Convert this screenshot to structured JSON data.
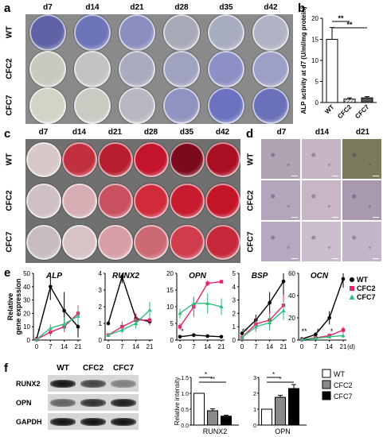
{
  "panels": {
    "a": "a",
    "b": "b",
    "c": "c",
    "d": "d",
    "e": "e",
    "f": "f"
  },
  "timepoints": [
    "d7",
    "d14",
    "d21",
    "d28",
    "d35",
    "d42"
  ],
  "micro_timepoints": [
    "d7",
    "d14",
    "d21"
  ],
  "rows": [
    "WT",
    "CFC2",
    "CFC7"
  ],
  "panel_a_colors": [
    [
      "#5f63a5",
      "#6e74b8",
      "#8b8fc0",
      "#a8aab8",
      "#a8acc0",
      "#b0b3c3"
    ],
    [
      "#c9c9bf",
      "#c2c4c3",
      "#a9abc0",
      "#a0a3c0",
      "#8c90c4",
      "#9c9fc8"
    ],
    [
      "#d3d3c6",
      "#cbcbc3",
      "#b7b8c2",
      "#8e93c0",
      "#6c72bf",
      "#6b71b9"
    ]
  ],
  "panel_c_colors": [
    [
      "#d9c8c8",
      "#c23040",
      "#b81e2e",
      "#c3142c",
      "#7d0a1c",
      "#aa0e22"
    ],
    [
      "#cfc0c3",
      "#d7aeb3",
      "#c9505e",
      "#d12a3a",
      "#c71c30",
      "#c41428"
    ],
    [
      "#c9bcc0",
      "#d7c3c6",
      "#d69ea5",
      "#cc6a74",
      "#cf3c4c",
      "#c4283a"
    ]
  ],
  "panel_d_colors": [
    [
      "#b1a2b4",
      "#c7b4c4",
      "#7a7a5c"
    ],
    [
      "#b3a6bb",
      "#c8b6c4",
      "#a899ae"
    ],
    [
      "#b8a8bf",
      "#cbbdcd",
      "#c4b6c8"
    ]
  ],
  "panel_b": {
    "chart_data": {
      "type": "bar",
      "ylabel": "ALP activity at d7 (U/ml/mg protein)",
      "categories": [
        "WT",
        "CFC2",
        "CFC7"
      ],
      "values": [
        15,
        0.8,
        1.1
      ],
      "errors": [
        2.8,
        0.3,
        0.3
      ],
      "ylim": [
        0,
        20
      ],
      "yticks": [
        "0",
        "5",
        "10",
        "15",
        "20"
      ],
      "significance": [
        {
          "label": "**",
          "from": "WT",
          "to": "CFC2"
        },
        {
          "label": "**",
          "from": "WT",
          "to": "CFC7"
        }
      ]
    }
  },
  "panel_e": {
    "ylabel": "Relative gene expression",
    "xlabel": "(d)",
    "chart_data": [
      {
        "type": "line",
        "title": "ALP",
        "x": [
          0,
          7,
          14,
          21
        ],
        "ylim": [
          0,
          50
        ],
        "yticks": [
          "0",
          "10",
          "20",
          "30",
          "40",
          "50"
        ],
        "series": [
          {
            "name": "WT",
            "values": [
              1,
              40,
              22,
              10
            ],
            "err": [
              0.3,
              10,
              14,
              8
            ]
          },
          {
            "name": "CFC2",
            "values": [
              0.5,
              6,
              10,
              20
            ],
            "err": [
              0.2,
              3,
              4,
              6
            ]
          },
          {
            "name": "CFC7",
            "values": [
              0.5,
              9,
              12,
              18
            ],
            "err": [
              0.2,
              3,
              5,
              6
            ]
          }
        ],
        "stars": [
          {
            "x": 0,
            "label": "*"
          }
        ]
      },
      {
        "type": "line",
        "title": "RUNX2",
        "x": [
          0,
          7,
          14,
          21
        ],
        "ylim": [
          0,
          4
        ],
        "yticks": [
          "0",
          "1",
          "2",
          "3",
          "4"
        ],
        "series": [
          {
            "name": "WT",
            "values": [
              1,
              3.8,
              1.3,
              1.1
            ],
            "err": [
              0.1,
              0.4,
              0.3,
              0.2
            ]
          },
          {
            "name": "CFC2",
            "values": [
              0.3,
              0.8,
              1.2,
              1.2
            ],
            "err": [
              0.1,
              0.3,
              0.4,
              0.3
            ]
          },
          {
            "name": "CFC7",
            "values": [
              0.3,
              0.6,
              1.0,
              1.8
            ],
            "err": [
              0.1,
              0.2,
              0.3,
              0.5
            ]
          }
        ]
      },
      {
        "type": "line",
        "title": "OPN",
        "x": [
          0,
          7,
          14,
          21
        ],
        "ylim": [
          0,
          20
        ],
        "yticks": [
          "0",
          "5",
          "10",
          "15",
          "20"
        ],
        "series": [
          {
            "name": "WT",
            "values": [
              1,
              1.5,
              1.2,
              1.0
            ],
            "err": [
              0.2,
              0.3,
              0.3,
              0.2
            ]
          },
          {
            "name": "CFC2",
            "values": [
              4,
              10,
              17,
              17.5
            ],
            "err": [
              1,
              3,
              0.8,
              0.5
            ]
          },
          {
            "name": "CFC7",
            "values": [
              8,
              11,
              11,
              10
            ],
            "err": [
              1.5,
              2,
              3,
              2.5
            ]
          }
        ],
        "stars": [
          {
            "x": 0,
            "label": "*"
          }
        ]
      },
      {
        "type": "line",
        "title": "BSP",
        "x": [
          0,
          7,
          14,
          21
        ],
        "ylim": [
          0,
          5
        ],
        "yticks": [
          "0",
          "1",
          "2",
          "3",
          "4",
          "5"
        ],
        "series": [
          {
            "name": "WT",
            "values": [
              0.5,
              1.5,
              2.8,
              4.4
            ],
            "err": [
              0.1,
              0.4,
              0.8,
              1.3
            ]
          },
          {
            "name": "CFC2",
            "values": [
              0.2,
              1.2,
              1.5,
              2.6
            ],
            "err": [
              0.1,
              0.5,
              0.6,
              0.8
            ]
          },
          {
            "name": "CFC7",
            "values": [
              0.2,
              1.0,
              1.3,
              2.2
            ],
            "err": [
              0.1,
              0.4,
              0.6,
              0.7
            ]
          }
        ],
        "stars": [
          {
            "x": 0,
            "label": "**"
          }
        ]
      },
      {
        "type": "line",
        "title": "OCN",
        "x": [
          0,
          7,
          14,
          21
        ],
        "ylim": [
          0,
          60
        ],
        "yticks": [
          "0",
          "20",
          "40",
          "60"
        ],
        "series": [
          {
            "name": "WT",
            "values": [
              1,
              5,
              20,
              55
            ],
            "err": [
              0.2,
              2,
              6,
              8
            ]
          },
          {
            "name": "CFC2",
            "values": [
              0.5,
              2,
              4,
              9
            ],
            "err": [
              0.2,
              1,
              2,
              3
            ]
          },
          {
            "name": "CFC7",
            "values": [
              0.5,
              1.5,
              3,
              4
            ],
            "err": [
              0.2,
              0.8,
              1.5,
              2
            ]
          }
        ],
        "stars": [
          {
            "x": 0,
            "label": "**"
          },
          {
            "x": 7,
            "label": "*"
          },
          {
            "x": 14,
            "label": "*"
          }
        ]
      }
    ],
    "xticks": [
      "0",
      "7",
      "14",
      "21"
    ],
    "legend": [
      {
        "name": "WT",
        "color": "#000000",
        "marker": "circle"
      },
      {
        "name": "CFC2",
        "color": "#e0246a",
        "marker": "square"
      },
      {
        "name": "CFC7",
        "color": "#2fbf7a",
        "marker": "triangle"
      }
    ]
  },
  "panel_f": {
    "blot_columns": [
      "WT",
      "CFC2",
      "CFC7"
    ],
    "blot_rows": [
      "RUNX2",
      "OPN",
      "GAPDH"
    ],
    "band_intensity": [
      [
        1.0,
        0.75,
        0.45
      ],
      [
        0.6,
        0.85,
        0.95
      ],
      [
        1.0,
        1.0,
        1.0
      ]
    ],
    "ylabel": "Relative intensity",
    "chart_data": [
      {
        "type": "bar",
        "xlabel": "RUNX2",
        "categories": [
          "WT",
          "CFC2",
          "CFC7"
        ],
        "values": [
          1.0,
          0.45,
          0.28
        ],
        "errors": [
          0,
          0.06,
          0.03
        ],
        "ylim": [
          0,
          1.5
        ],
        "yticks": [
          "0.0",
          "0.5",
          "1.0",
          "1.5"
        ],
        "significance": [
          {
            "label": "*",
            "from": "WT",
            "to": "CFC2"
          },
          {
            "label": "**",
            "from": "WT",
            "to": "CFC7"
          }
        ]
      },
      {
        "type": "bar",
        "xlabel": "OPN",
        "categories": [
          "WT",
          "CFC2",
          "CFC7"
        ],
        "values": [
          1.0,
          1.75,
          2.3
        ],
        "errors": [
          0,
          0.12,
          0.25
        ],
        "ylim": [
          0,
          3
        ],
        "yticks": [
          "0",
          "1",
          "2",
          "3"
        ],
        "significance": [
          {
            "label": "*",
            "from": "WT",
            "to": "CFC2"
          },
          {
            "label": "*",
            "from": "WT",
            "to": "CFC7"
          }
        ]
      }
    ],
    "legend": [
      {
        "name": "WT",
        "fill": "#ffffff"
      },
      {
        "name": "CFC2",
        "fill": "#8a8a8a"
      },
      {
        "name": "CFC7",
        "fill": "#000000"
      }
    ]
  }
}
